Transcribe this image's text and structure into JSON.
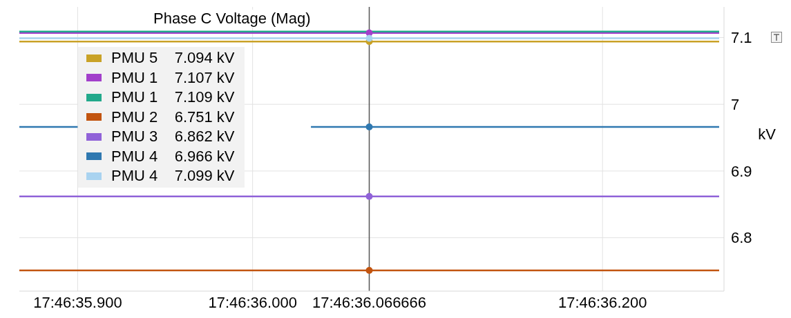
{
  "chart_data": {
    "type": "line",
    "title": "Phase C Voltage (Mag)",
    "ylabel": "kV",
    "categories": [
      null,
      "17:46:35.900",
      null,
      null,
      "17:46:36.000",
      null,
      "17:46:36.066666",
      null,
      null,
      null,
      "17:46:36.200",
      null,
      null
    ],
    "series": [
      {
        "name": "PMU 5    7.094 kV",
        "color": "#c9a227",
        "values": [
          7.094,
          7.094,
          7.094,
          7.094,
          7.094,
          7.094,
          7.094,
          7.094,
          7.094,
          7.094,
          7.094,
          7.094,
          7.094
        ]
      },
      {
        "name": "PMU 1    7.107 kV",
        "color": "#a23fcb",
        "values": [
          7.107,
          7.107,
          7.107,
          7.107,
          7.107,
          7.107,
          7.107,
          7.107,
          7.107,
          7.107,
          7.107,
          7.107,
          7.107
        ]
      },
      {
        "name": "PMU 1    7.109 kV",
        "color": "#22a98b",
        "values": [
          7.109,
          7.109,
          7.109,
          7.109,
          7.109,
          7.109,
          7.109,
          7.109,
          7.109,
          7.109,
          7.109,
          7.109,
          7.109
        ]
      },
      {
        "name": "PMU 2    6.751 kV",
        "color": "#c2540f",
        "values": [
          6.751,
          6.751,
          6.751,
          6.751,
          6.751,
          6.751,
          6.751,
          6.751,
          6.751,
          6.751,
          6.751,
          6.751,
          6.751
        ]
      },
      {
        "name": "PMU 3    6.862 kV",
        "color": "#9062d8",
        "values": [
          6.862,
          6.862,
          6.862,
          6.862,
          6.862,
          6.862,
          6.862,
          6.862,
          6.862,
          6.862,
          6.862,
          6.862,
          6.862
        ]
      },
      {
        "name": "PMU 4    6.966 kV",
        "color": "#2f78b0",
        "values": [
          6.966,
          6.966,
          null,
          null,
          null,
          6.966,
          6.966,
          6.966,
          6.966,
          6.966,
          6.966,
          6.966,
          6.966
        ]
      },
      {
        "name": "PMU 4    7.099 kV",
        "color": "#a9d3f0",
        "values": [
          7.099,
          7.099,
          7.099,
          7.099,
          7.099,
          7.099,
          7.099,
          7.099,
          7.099,
          7.099,
          7.099,
          7.099,
          7.099
        ]
      },
      {
        "type": "scatter",
        "color": "#c9a227",
        "x": [
          "17:46:36.066666"
        ],
        "values": [
          7.094
        ]
      },
      {
        "type": "scatter",
        "color": "#a23fcb",
        "x": [
          "17:46:36.066666"
        ],
        "values": [
          7.107
        ]
      },
      {
        "type": "scatter",
        "color": "#c2540f",
        "x": [
          "17:46:36.066666"
        ],
        "values": [
          6.751
        ]
      },
      {
        "type": "scatter",
        "color": "#9062d8",
        "x": [
          "17:46:36.066666"
        ],
        "values": [
          6.862
        ]
      },
      {
        "type": "scatter",
        "color": "#2f78b0",
        "x": [
          "17:46:36.066666"
        ],
        "values": [
          6.966
        ]
      },
      {
        "type": "scatter",
        "color": "#a9d3f0",
        "x": [
          "17:46:36.066666"
        ],
        "values": [
          7.099
        ]
      }
    ],
    "ylim": [
      6.72,
      7.146
    ],
    "yticks": [
      6.8,
      6.9,
      7,
      7.1
    ],
    "ref_lines": [
      {
        "axis": "x",
        "value": "17:46:36.066666",
        "color": "#555555"
      }
    ],
    "grid": true,
    "legend": "top left",
    "line_style": "solid"
  }
}
